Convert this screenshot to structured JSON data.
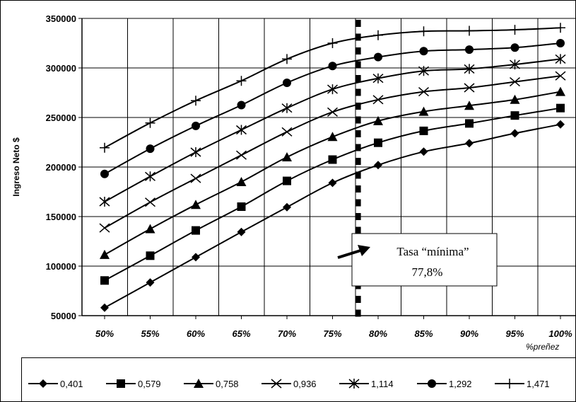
{
  "chart_data": {
    "type": "line",
    "xlabel": "%preñez",
    "ylabel": "Ingreso Neto $",
    "x": [
      "50%",
      "55%",
      "60%",
      "65%",
      "70%",
      "75%",
      "80%",
      "85%",
      "90%",
      "95%",
      "100%"
    ],
    "x_values": [
      50,
      55,
      60,
      65,
      70,
      75,
      80,
      85,
      90,
      95,
      100
    ],
    "ylim": [
      50000,
      350000
    ],
    "yticks": [
      "350000",
      "300000",
      "250000",
      "200000",
      "150000",
      "100000",
      "50000"
    ],
    "grid": "vertical and horizontal",
    "series": [
      {
        "name": "0,401",
        "marker": "diamond",
        "values": [
          58000,
          83500,
          109000,
          134500,
          159500,
          184000,
          202000,
          215500,
          224000,
          234000,
          243000
        ]
      },
      {
        "name": "0,579",
        "marker": "square",
        "values": [
          85500,
          110500,
          136000,
          160000,
          186000,
          207500,
          224500,
          236500,
          244000,
          252000,
          259500
        ]
      },
      {
        "name": "0,758",
        "marker": "triangle",
        "values": [
          111500,
          137500,
          162000,
          185000,
          210000,
          230500,
          246500,
          256000,
          262000,
          268000,
          276000
        ]
      },
      {
        "name": "0,936",
        "marker": "x",
        "values": [
          138500,
          164500,
          188500,
          212000,
          235500,
          255500,
          268000,
          276000,
          280000,
          286000,
          292000
        ]
      },
      {
        "name": "1,114",
        "marker": "asterisk",
        "values": [
          165000,
          190500,
          215000,
          237500,
          259500,
          278500,
          289500,
          297000,
          299000,
          303500,
          309000
        ]
      },
      {
        "name": "1,292",
        "marker": "circle",
        "values": [
          193000,
          218500,
          241500,
          262500,
          285000,
          302000,
          311000,
          317000,
          318500,
          320500,
          325000
        ]
      },
      {
        "name": "1,471",
        "marker": "plus",
        "values": [
          219500,
          244500,
          267000,
          287000,
          309000,
          325000,
          333000,
          337000,
          337500,
          338500,
          340500
        ]
      }
    ],
    "threshold": {
      "x_value": 77.8
    },
    "annotation": {
      "line1": "Tasa “mínima”",
      "line2": "77,8%"
    },
    "legend_position": "bottom"
  }
}
